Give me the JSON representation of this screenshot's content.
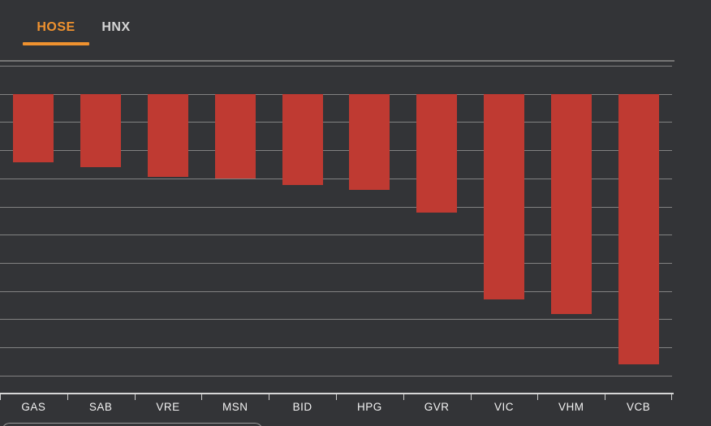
{
  "theme": {
    "background": "#333437",
    "bar_color": "#bf3a32",
    "grid_color": "#828282",
    "axis_color": "#d6d6d6",
    "tick_color": "#cfcfcf",
    "label_color": "#f2f2f2",
    "accent_orange": "#f0922f",
    "inactive_tab_color": "#d6d6d6",
    "divider_color": "#767676",
    "bottom_panel_border": "#9b9b9b"
  },
  "tabs": [
    {
      "label": "HOSE",
      "active": true
    },
    {
      "label": "HNX",
      "active": false
    }
  ],
  "chart_data": {
    "type": "bar",
    "orientation": "vertical",
    "title": "",
    "xlabel": "",
    "ylabel": "",
    "categories": [
      "GAS",
      "SAB",
      "VRE",
      "MSN",
      "BID",
      "HPG",
      "GVR",
      "VIC",
      "VHM",
      "VCB"
    ],
    "values": [
      -1.22,
      -1.3,
      -1.48,
      -1.51,
      -1.62,
      -1.7,
      -2.11,
      -3.65,
      -3.91,
      -4.8
    ],
    "bar_color": "#bf3a32",
    "ylim": [
      0.5,
      -5.3
    ],
    "grid": true,
    "grid_step": 0.5,
    "y_axis_labels_visible": false,
    "legend": "none",
    "note": "y-axis has no visible numeric labels; values estimated at 0.5 units per gridline, zero line at second gridline from top"
  },
  "bottom_panel": {
    "visible": true,
    "text": ""
  }
}
